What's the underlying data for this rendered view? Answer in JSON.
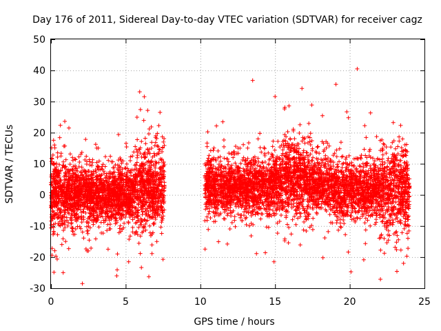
{
  "chart_data": {
    "type": "scatter",
    "title": "Day 176 of 2011, Sidereal Day-to-day VTEC variation (SDTVAR) for receiver cagz",
    "xlabel": "GPS time / hours",
    "ylabel": "SDTVAR / TECUs",
    "xlim": [
      0,
      25
    ],
    "ylim": [
      -30,
      50
    ],
    "xticks": [
      0,
      5,
      10,
      15,
      20,
      25
    ],
    "yticks": [
      -30,
      -20,
      -10,
      0,
      10,
      20,
      30,
      40,
      50
    ],
    "grid": true,
    "marker": "+",
    "color": "#ff0000",
    "series": [
      {
        "name": "SDTVAR",
        "description_of_clusters": [
          {
            "x_range": [
              0,
              7.6
            ],
            "center": 0,
            "spread": 4.5
          },
          {
            "x_range": [
              10.3,
              24
            ],
            "center": 3,
            "spread": 4.5
          }
        ],
        "outliers": [
          {
            "x": 2.1,
            "y": -28.5
          },
          {
            "x": 4.4,
            "y": -26
          },
          {
            "x": 13.5,
            "y": 36.8
          },
          {
            "x": 16.8,
            "y": 34.2
          },
          {
            "x": 20.5,
            "y": 40.5
          },
          {
            "x": 7.3,
            "y": 26.5
          },
          {
            "x": 19.8,
            "y": 26.7
          },
          {
            "x": 23.6,
            "y": -22
          },
          {
            "x": 2.5,
            "y": -18
          },
          {
            "x": 5.2,
            "y": -21.5
          },
          {
            "x": 11.5,
            "y": 23.5
          },
          {
            "x": 1.2,
            "y": 21.5
          }
        ]
      }
    ]
  }
}
